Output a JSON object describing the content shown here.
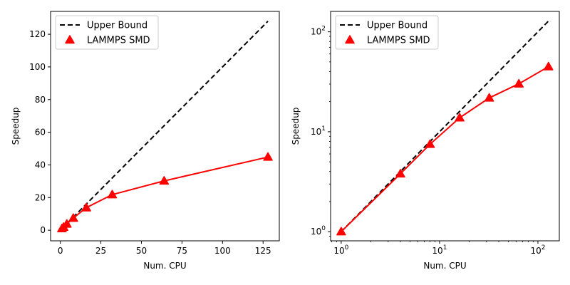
{
  "chart_data": [
    {
      "type": "line",
      "xscale": "linear",
      "yscale": "linear",
      "xlabel": "Num. CPU",
      "ylabel": "Speedup",
      "xlim": [
        -6,
        135
      ],
      "ylim": [
        -6.5,
        134
      ],
      "xticks": [
        0,
        25,
        50,
        75,
        100,
        125
      ],
      "yticks": [
        0,
        20,
        40,
        60,
        80,
        100,
        120
      ],
      "xtick_labels": [
        "0",
        "25",
        "50",
        "75",
        "100",
        "125"
      ],
      "ytick_labels": [
        "0",
        "20",
        "40",
        "60",
        "80",
        "100",
        "120"
      ],
      "legend": {
        "position": "top-left"
      },
      "series": [
        {
          "name": "Upper Bound",
          "style": "dashed",
          "color": "#000000",
          "x": [
            1,
            128
          ],
          "y": [
            1,
            128
          ]
        },
        {
          "name": "LAMMPS SMD",
          "style": "solid-triangle",
          "color": "#ff0000",
          "x": [
            1,
            2,
            4,
            8,
            16,
            32,
            64,
            128
          ],
          "y": [
            1,
            1.9,
            3.8,
            7.4,
            13.8,
            21.8,
            30.2,
            44.8
          ]
        }
      ]
    },
    {
      "type": "line",
      "xscale": "log",
      "yscale": "log",
      "xlabel": "Num. CPU",
      "ylabel": "Speedup",
      "xlim": [
        0.78,
        165
      ],
      "ylim": [
        0.81,
        160
      ],
      "xticks": [
        1,
        10,
        100
      ],
      "yticks": [
        1,
        10,
        100
      ],
      "xtick_labels": [
        "10^0",
        "10^1",
        "10^2"
      ],
      "ytick_labels": [
        "10^0",
        "10^1",
        "10^2"
      ],
      "legend": {
        "position": "top-left"
      },
      "series": [
        {
          "name": "Upper Bound",
          "style": "dashed",
          "color": "#000000",
          "x": [
            1,
            128
          ],
          "y": [
            1,
            128
          ]
        },
        {
          "name": "LAMMPS SMD",
          "style": "solid-triangle",
          "color": "#ff0000",
          "x": [
            1,
            4,
            8,
            16,
            32,
            64,
            128
          ],
          "y": [
            1,
            3.8,
            7.5,
            13.8,
            21.8,
            30.2,
            44.8
          ]
        }
      ]
    }
  ]
}
